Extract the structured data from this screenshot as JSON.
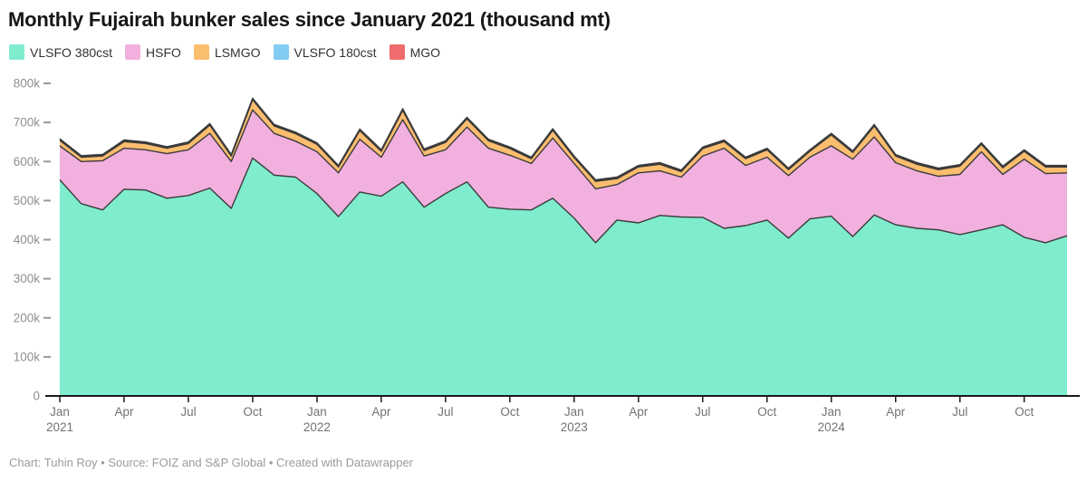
{
  "title": "Monthly Fujairah bunker sales since January 2021 (thousand mt)",
  "footer": "Chart: Tuhin Roy • Source: FOIZ and S&P Global • Created with Datawrapper",
  "chart_data": {
    "type": "area",
    "stacked": true,
    "title": "Monthly Fujairah bunker sales since January 2021 (thousand mt)",
    "unit": "thousand mt",
    "legend_position": "top-left",
    "grid": false,
    "ylim": [
      0,
      800
    ],
    "x": [
      "2021-01",
      "2021-02",
      "2021-03",
      "2021-04",
      "2021-05",
      "2021-06",
      "2021-07",
      "2021-08",
      "2021-09",
      "2021-10",
      "2021-11",
      "2021-12",
      "2022-01",
      "2022-02",
      "2022-03",
      "2022-04",
      "2022-05",
      "2022-06",
      "2022-07",
      "2022-08",
      "2022-09",
      "2022-10",
      "2022-11",
      "2022-12",
      "2023-01",
      "2023-02",
      "2023-03",
      "2023-04",
      "2023-05",
      "2023-06",
      "2023-07",
      "2023-08",
      "2023-09",
      "2023-10",
      "2023-11",
      "2023-12",
      "2024-01",
      "2024-02",
      "2024-03",
      "2024-04",
      "2024-05",
      "2024-06",
      "2024-07",
      "2024-08",
      "2024-09",
      "2024-10",
      "2024-11",
      "2024-12"
    ],
    "series": [
      {
        "name": "VLSFO 380cst",
        "color": "#7feccd",
        "values": [
          553,
          492,
          476,
          529,
          527,
          506,
          513,
          532,
          480,
          609,
          565,
          560,
          518,
          459,
          522,
          511,
          548,
          483,
          518,
          548,
          483,
          478,
          476,
          506,
          455,
          392,
          450,
          443,
          462,
          458,
          457,
          429,
          436,
          450,
          404,
          453,
          460,
          408,
          463,
          438,
          429,
          425,
          413,
          425,
          438,
          406,
          392,
          410
        ]
      },
      {
        "name": "HSFO",
        "color": "#f1b0de",
        "values": [
          87,
          108,
          126,
          105,
          103,
          114,
          117,
          140,
          120,
          123,
          107,
          92,
          107,
          112,
          135,
          100,
          159,
          131,
          112,
          140,
          151,
          138,
          119,
          154,
          140,
          138,
          91,
          128,
          114,
          102,
          157,
          205,
          154,
          161,
          160,
          158,
          180,
          198,
          200,
          159,
          147,
          137,
          154,
          200,
          129,
          200,
          177,
          161
        ]
      },
      {
        "name": "LSMGO",
        "color": "#fbbd6e",
        "values": [
          14,
          11,
          12,
          17,
          16,
          14,
          16,
          21,
          14,
          26,
          19,
          19,
          19,
          15,
          22,
          15,
          24,
          14,
          19,
          21,
          19,
          17,
          12,
          20,
          15,
          19,
          15,
          15,
          17,
          14,
          19,
          17,
          17,
          19,
          15,
          15,
          28,
          17,
          28,
          17,
          17,
          17,
          21,
          19,
          17,
          20,
          17,
          15
        ]
      },
      {
        "name": "VLSFO 180cst",
        "color": "#82cbf2",
        "values": [
          2,
          2,
          2,
          2,
          2,
          2,
          2,
          2,
          2,
          2,
          2,
          2,
          2,
          2,
          2,
          2,
          2,
          2,
          2,
          2,
          2,
          2,
          2,
          2,
          2,
          2,
          2,
          2,
          2,
          2,
          2,
          2,
          2,
          2,
          2,
          2,
          2,
          2,
          2,
          2,
          2,
          2,
          2,
          2,
          2,
          2,
          2,
          2
        ]
      },
      {
        "name": "MGO",
        "color": "#ee6c6c",
        "values": [
          2,
          2,
          2,
          2,
          2,
          2,
          2,
          2,
          2,
          2,
          2,
          2,
          2,
          2,
          2,
          2,
          2,
          2,
          2,
          2,
          2,
          2,
          2,
          2,
          2,
          2,
          2,
          2,
          2,
          2,
          2,
          2,
          2,
          2,
          2,
          2,
          2,
          2,
          2,
          2,
          2,
          2,
          2,
          2,
          2,
          2,
          2,
          2
        ]
      }
    ],
    "y_ticks": [
      {
        "v": 0,
        "label": "0"
      },
      {
        "v": 100,
        "label": "100k"
      },
      {
        "v": 200,
        "label": "200k"
      },
      {
        "v": 300,
        "label": "300k"
      },
      {
        "v": 400,
        "label": "400k"
      },
      {
        "v": 500,
        "label": "500k"
      },
      {
        "v": 600,
        "label": "600k"
      },
      {
        "v": 700,
        "label": "700k"
      },
      {
        "v": 800,
        "label": "800k"
      }
    ],
    "x_ticks": [
      {
        "i": 0,
        "label": "Jan",
        "year": "2021"
      },
      {
        "i": 3,
        "label": "Apr"
      },
      {
        "i": 6,
        "label": "Jul"
      },
      {
        "i": 9,
        "label": "Oct"
      },
      {
        "i": 12,
        "label": "Jan",
        "year": "2022"
      },
      {
        "i": 15,
        "label": "Apr"
      },
      {
        "i": 18,
        "label": "Jul"
      },
      {
        "i": 21,
        "label": "Oct"
      },
      {
        "i": 24,
        "label": "Jan",
        "year": "2023"
      },
      {
        "i": 27,
        "label": "Apr"
      },
      {
        "i": 30,
        "label": "Jul"
      },
      {
        "i": 33,
        "label": "Oct"
      },
      {
        "i": 36,
        "label": "Jan",
        "year": "2024"
      },
      {
        "i": 39,
        "label": "Apr"
      },
      {
        "i": 42,
        "label": "Jul"
      },
      {
        "i": 45,
        "label": "Oct"
      }
    ],
    "axis_colors": {
      "baseline": "#1a1a1a",
      "y_label": "#8f8f8f",
      "x_label": "#737373",
      "tick": "#9a9a9a"
    },
    "boundary_stroke": "#3b3b3b"
  }
}
